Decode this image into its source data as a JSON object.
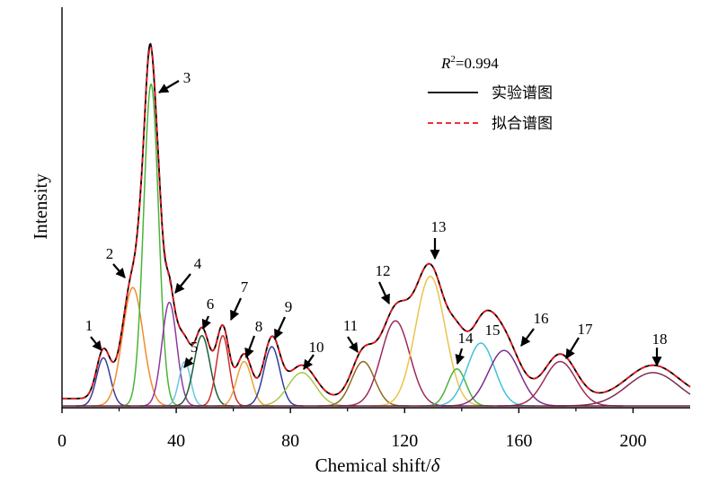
{
  "chart_data": {
    "type": "line",
    "xlabel": "Chemical shift/",
    "xlabel_symbol": "δ",
    "ylabel": "Intensity",
    "xlim": [
      0,
      220
    ],
    "xticks": [
      0,
      40,
      80,
      120,
      160,
      200
    ],
    "ylim": [
      0,
      1
    ],
    "grid": false,
    "legend_placement": "top-right",
    "r2_label": "R²=0.994",
    "legend": [
      {
        "label": "实验谱图",
        "color": "#000000",
        "style": "solid"
      },
      {
        "label": "拟合谱图",
        "color": "#e8161b",
        "style": "dashed"
      }
    ],
    "fitted_peaks": [
      {
        "label": "1",
        "center": 14.5,
        "height": 0.13,
        "width": 2.4,
        "color": "#3b3b98"
      },
      {
        "label": "2",
        "center": 24.8,
        "height": 0.32,
        "width": 3.6,
        "color": "#f08c2e"
      },
      {
        "label": "3",
        "center": 31.2,
        "height": 0.87,
        "width": 2.6,
        "color": "#4bb33a"
      },
      {
        "label": "4",
        "center": 37.6,
        "height": 0.28,
        "width": 2.6,
        "color": "#8e3a9d"
      },
      {
        "label": "5",
        "center": 43.0,
        "height": 0.12,
        "width": 2.0,
        "color": "#67c7e0"
      },
      {
        "label": "6",
        "center": 49.0,
        "height": 0.19,
        "width": 2.8,
        "color": "#1d5e3a"
      },
      {
        "label": "7",
        "center": 56.3,
        "height": 0.19,
        "width": 2.2,
        "color": "#c9302c"
      },
      {
        "label": "8",
        "center": 63.8,
        "height": 0.12,
        "width": 2.6,
        "color": "#e8a23a"
      },
      {
        "label": "9",
        "center": 73.5,
        "height": 0.16,
        "width": 2.8,
        "color": "#2d3f9e"
      },
      {
        "label": "10",
        "center": 84.0,
        "height": 0.09,
        "width": 4.8,
        "color": "#a9c64a"
      },
      {
        "label": "11",
        "center": 105.5,
        "height": 0.12,
        "width": 4.0,
        "color": "#8a6b1f"
      },
      {
        "label": "12",
        "center": 116.8,
        "height": 0.23,
        "width": 5.0,
        "color": "#9d2a5c"
      },
      {
        "label": "13",
        "center": 129.0,
        "height": 0.35,
        "width": 5.2,
        "color": "#ebc34a"
      },
      {
        "label": "14",
        "center": 138.3,
        "height": 0.1,
        "width": 3.2,
        "color": "#4bb33a"
      },
      {
        "label": "15",
        "center": 146.7,
        "height": 0.17,
        "width": 4.8,
        "color": "#40c2dc"
      },
      {
        "label": "16",
        "center": 154.8,
        "height": 0.15,
        "width": 5.5,
        "color": "#7a2f86"
      },
      {
        "label": "17",
        "center": 174.5,
        "height": 0.12,
        "width": 5.5,
        "color": "#9d2a5c"
      },
      {
        "label": "18",
        "center": 207.0,
        "height": 0.09,
        "width": 9.0,
        "color": "#7e2b52"
      }
    ],
    "annotations": [
      {
        "label": "1"
      },
      {
        "label": "2"
      },
      {
        "label": "3"
      },
      {
        "label": "4"
      },
      {
        "label": "5"
      },
      {
        "label": "6"
      },
      {
        "label": "7"
      },
      {
        "label": "8"
      },
      {
        "label": "9"
      },
      {
        "label": "10"
      },
      {
        "label": "11"
      },
      {
        "label": "12"
      },
      {
        "label": "13"
      },
      {
        "label": "14"
      },
      {
        "label": "15"
      },
      {
        "label": "16"
      },
      {
        "label": "17"
      },
      {
        "label": "18"
      }
    ]
  }
}
